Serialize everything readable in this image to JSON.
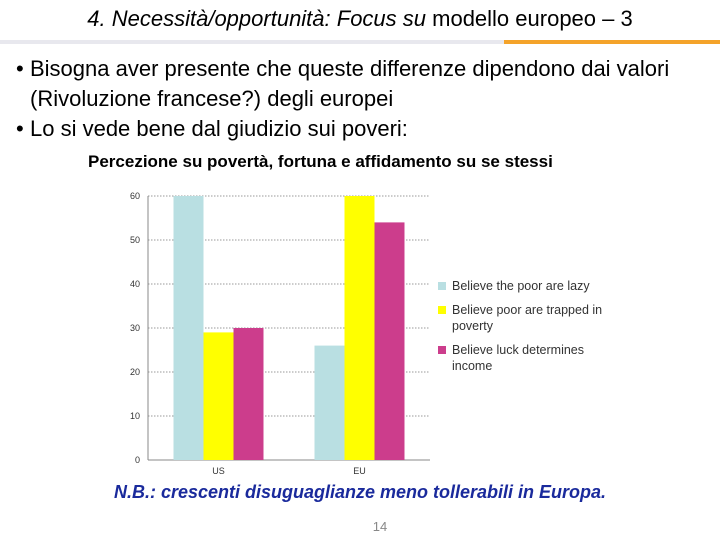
{
  "slide": {
    "title_italic": "4. Necessità/opportunità: Focus su",
    "title_plain": " modello europeo – 3",
    "bullets": [
      "Bisogna aver presente che queste differenze dipendono dai valori (Rivoluzione francese?) degli europei",
      "Lo si vede bene dal giudizio sui poveri:"
    ],
    "note": "N.B.: crescenti disuguaglianze meno tollerabili in Europa.",
    "page_number": "14",
    "accent_colors": {
      "rule_left": "#e8e8ee",
      "rule_right": "#f4a32a",
      "note": "#1a2a9c"
    }
  },
  "chart_data": {
    "type": "bar",
    "title": "Percezione su povertà, fortuna e affidamento su se stessi",
    "categories": [
      "US",
      "EU"
    ],
    "series": [
      {
        "name": "Believe the poor are lazy",
        "color": "#b9dfe2",
        "values": [
          60,
          26
        ]
      },
      {
        "name": "Believe poor are trapped in poverty",
        "color": "#ffff00",
        "values": [
          29,
          60
        ]
      },
      {
        "name": "Believe luck determines income",
        "color": "#cc3d8c",
        "values": [
          30,
          54
        ]
      }
    ],
    "ylim": [
      0,
      60
    ],
    "yticks": [
      0,
      10,
      20,
      30,
      40,
      50,
      60
    ],
    "grid": true,
    "legend_position": "right"
  }
}
